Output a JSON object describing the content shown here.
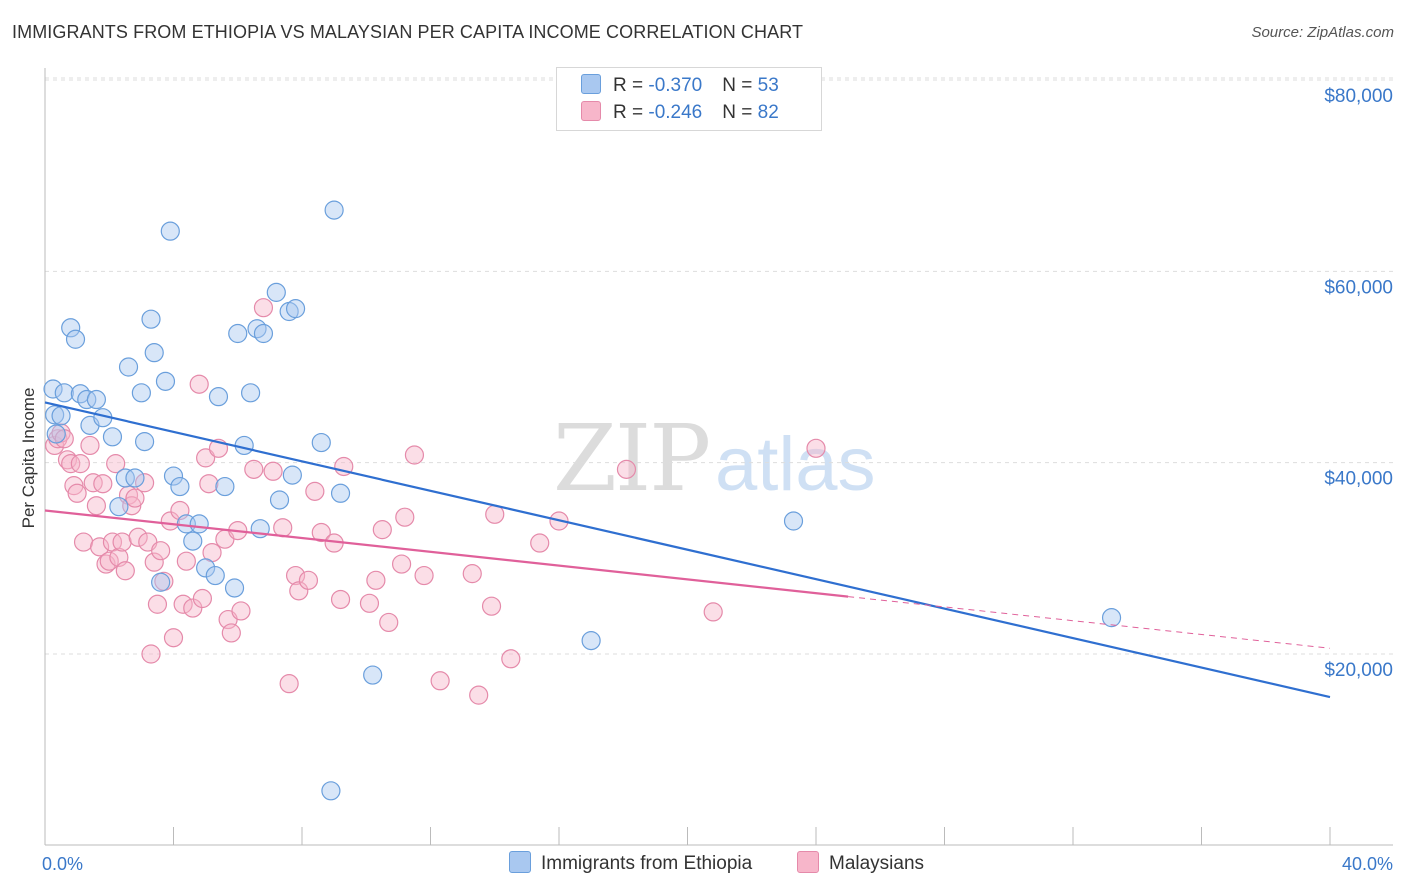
{
  "header": {
    "title": "IMMIGRANTS FROM ETHIOPIA VS MALAYSIAN PER CAPITA INCOME CORRELATION CHART",
    "source": "Source: ZipAtlas.com"
  },
  "watermark": {
    "zip": "ZIP",
    "atlas": "atlas"
  },
  "legend": {
    "rows": [
      {
        "r_label": "R = ",
        "r_value": "-0.370",
        "n_label": "N = ",
        "n_value": "53",
        "color": "#a9c8f0"
      },
      {
        "r_label": "R = ",
        "r_value": "-0.246",
        "n_label": "N = ",
        "n_value": "82",
        "color": "#f7b6ca"
      }
    ]
  },
  "bottom_legend": {
    "series1": "Immigrants from Ethiopia",
    "series2": "Malaysians"
  },
  "colors": {
    "blue_fill": "#a9c8f0",
    "blue_stroke": "#6a9fdc",
    "blue_line": "#2f6fd0",
    "pink_fill": "#f7b6ca",
    "pink_stroke": "#e58aaa",
    "pink_line": "#e0609a",
    "axis_text": "#3a78c9"
  },
  "chart_data": {
    "type": "scatter",
    "title": "IMMIGRANTS FROM ETHIOPIA VS MALAYSIAN PER CAPITA INCOME CORRELATION CHART",
    "xlabel": "",
    "ylabel": "Per Capita Income",
    "xlim": [
      0,
      40
    ],
    "ylim": [
      0,
      82000
    ],
    "x_tick_labels": [
      "0.0%",
      "40.0%"
    ],
    "y_ticks": [
      20000,
      40000,
      60000,
      80000
    ],
    "y_tick_labels": [
      "$20,000",
      "$40,000",
      "$60,000",
      "$80,000"
    ],
    "grid": "horizontal dashed",
    "legend_position": "top-center",
    "series": [
      {
        "name": "Immigrants from Ethiopia",
        "R": -0.37,
        "N": 53,
        "trend": {
          "x": [
            0,
            40
          ],
          "y": [
            46300,
            15500
          ]
        },
        "points": [
          [
            0.25,
            47700
          ],
          [
            0.3,
            45000
          ],
          [
            0.35,
            43000
          ],
          [
            0.6,
            47300
          ],
          [
            0.8,
            54100
          ],
          [
            0.95,
            52900
          ],
          [
            1.1,
            47200
          ],
          [
            1.3,
            46600
          ],
          [
            1.4,
            43900
          ],
          [
            1.6,
            46600
          ],
          [
            1.8,
            44700
          ],
          [
            2.1,
            42700
          ],
          [
            2.3,
            35400
          ],
          [
            2.5,
            38400
          ],
          [
            2.6,
            50000
          ],
          [
            2.8,
            38400
          ],
          [
            3.0,
            47300
          ],
          [
            3.1,
            42200
          ],
          [
            3.3,
            55000
          ],
          [
            3.4,
            51500
          ],
          [
            3.6,
            27500
          ],
          [
            3.75,
            48500
          ],
          [
            3.9,
            64200
          ],
          [
            4.0,
            38600
          ],
          [
            4.2,
            37500
          ],
          [
            4.4,
            33600
          ],
          [
            4.6,
            31800
          ],
          [
            4.8,
            33600
          ],
          [
            5.0,
            29000
          ],
          [
            5.3,
            28200
          ],
          [
            5.4,
            46900
          ],
          [
            5.6,
            37500
          ],
          [
            5.9,
            26900
          ],
          [
            6.0,
            53500
          ],
          [
            6.2,
            41800
          ],
          [
            6.4,
            47300
          ],
          [
            6.6,
            54000
          ],
          [
            6.7,
            33100
          ],
          [
            6.8,
            53500
          ],
          [
            7.2,
            57800
          ],
          [
            7.3,
            36100
          ],
          [
            7.6,
            55800
          ],
          [
            7.8,
            56100
          ],
          [
            7.7,
            38700
          ],
          [
            8.6,
            42100
          ],
          [
            8.9,
            5700
          ],
          [
            9.0,
            66400
          ],
          [
            9.2,
            36800
          ],
          [
            10.2,
            17800
          ],
          [
            17.0,
            21400
          ],
          [
            23.3,
            33900
          ],
          [
            33.2,
            23800
          ],
          [
            0.5,
            44900
          ]
        ]
      },
      {
        "name": "Malaysians",
        "R": -0.246,
        "N": 82,
        "trend": {
          "x": [
            0,
            25
          ],
          "y": [
            35000,
            26000
          ]
        },
        "trend_extension": {
          "x": [
            25,
            40
          ],
          "y": [
            26000,
            20600
          ]
        },
        "points": [
          [
            0.3,
            41800
          ],
          [
            0.4,
            42500
          ],
          [
            0.5,
            43100
          ],
          [
            0.6,
            42500
          ],
          [
            0.7,
            40300
          ],
          [
            0.8,
            39900
          ],
          [
            0.9,
            37600
          ],
          [
            1.0,
            36800
          ],
          [
            1.1,
            39900
          ],
          [
            1.2,
            31700
          ],
          [
            1.4,
            41800
          ],
          [
            1.5,
            37900
          ],
          [
            1.6,
            35500
          ],
          [
            1.7,
            31200
          ],
          [
            1.8,
            37800
          ],
          [
            1.9,
            29400
          ],
          [
            2.0,
            29700
          ],
          [
            2.1,
            31700
          ],
          [
            2.2,
            39900
          ],
          [
            2.3,
            30100
          ],
          [
            2.4,
            31700
          ],
          [
            2.5,
            28700
          ],
          [
            2.6,
            36600
          ],
          [
            2.7,
            35500
          ],
          [
            2.8,
            36300
          ],
          [
            2.9,
            32200
          ],
          [
            3.1,
            37900
          ],
          [
            3.2,
            31700
          ],
          [
            3.3,
            20000
          ],
          [
            3.4,
            29600
          ],
          [
            3.5,
            25200
          ],
          [
            3.6,
            30800
          ],
          [
            3.7,
            27600
          ],
          [
            3.9,
            33900
          ],
          [
            4.0,
            21700
          ],
          [
            4.2,
            35000
          ],
          [
            4.3,
            25200
          ],
          [
            4.4,
            29700
          ],
          [
            4.6,
            24800
          ],
          [
            4.8,
            48200
          ],
          [
            4.9,
            25800
          ],
          [
            5.0,
            40500
          ],
          [
            5.1,
            37800
          ],
          [
            5.2,
            30600
          ],
          [
            5.4,
            41500
          ],
          [
            5.6,
            32000
          ],
          [
            5.7,
            23600
          ],
          [
            5.8,
            22200
          ],
          [
            6.0,
            32900
          ],
          [
            6.1,
            24500
          ],
          [
            6.5,
            39300
          ],
          [
            6.8,
            56200
          ],
          [
            7.1,
            39100
          ],
          [
            7.4,
            33200
          ],
          [
            7.6,
            16900
          ],
          [
            7.8,
            28200
          ],
          [
            7.9,
            26600
          ],
          [
            8.2,
            27700
          ],
          [
            8.4,
            37000
          ],
          [
            8.6,
            32700
          ],
          [
            9.0,
            31600
          ],
          [
            9.2,
            25700
          ],
          [
            9.3,
            39600
          ],
          [
            10.1,
            25300
          ],
          [
            10.3,
            27700
          ],
          [
            10.5,
            33000
          ],
          [
            10.7,
            23300
          ],
          [
            11.1,
            29400
          ],
          [
            11.2,
            34300
          ],
          [
            11.5,
            40800
          ],
          [
            11.8,
            28200
          ],
          [
            12.3,
            17200
          ],
          [
            13.3,
            28400
          ],
          [
            13.5,
            15700
          ],
          [
            13.9,
            25000
          ],
          [
            14.0,
            34600
          ],
          [
            14.5,
            19500
          ],
          [
            15.4,
            31600
          ],
          [
            16.0,
            33900
          ],
          [
            18.1,
            39300
          ],
          [
            20.8,
            24400
          ],
          [
            24.0,
            41500
          ]
        ]
      }
    ]
  }
}
